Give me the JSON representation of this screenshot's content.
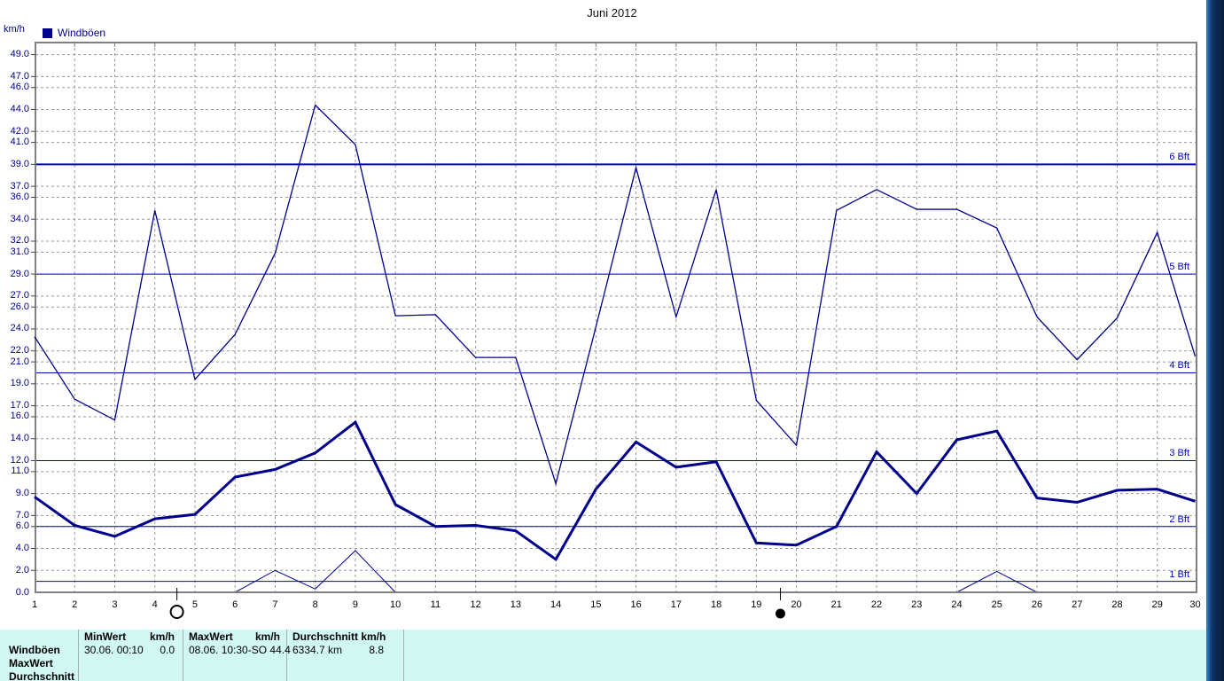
{
  "title": "Juni 2012",
  "y_axis": {
    "unit_label": "km/h",
    "tick_values": [
      49,
      47,
      46,
      44,
      42,
      41,
      39,
      37,
      36,
      34,
      32,
      31,
      29,
      27,
      26,
      24,
      22,
      21,
      19,
      17,
      16,
      14,
      12,
      11,
      9,
      7,
      6,
      4,
      2,
      0
    ],
    "range": [
      0,
      50
    ]
  },
  "x_axis": {
    "days": [
      1,
      2,
      3,
      4,
      5,
      6,
      7,
      8,
      9,
      10,
      11,
      12,
      13,
      14,
      15,
      16,
      17,
      18,
      19,
      20,
      21,
      22,
      23,
      24,
      25,
      26,
      27,
      28,
      29,
      30
    ]
  },
  "legend": {
    "label": "Windböen"
  },
  "bft_lines": [
    {
      "label": "1 Bft",
      "kmh": 1
    },
    {
      "label": "2 Bft",
      "kmh": 6
    },
    {
      "label": "3 Bft",
      "kmh": 12
    },
    {
      "label": "4 Bft",
      "kmh": 20
    },
    {
      "label": "5 Bft",
      "kmh": 29
    },
    {
      "label": "6 Bft",
      "kmh": 39
    }
  ],
  "moon_markers": [
    {
      "type": "full-moon",
      "day": 4.55
    },
    {
      "type": "new-moon",
      "day": 19.6
    }
  ],
  "colors": {
    "series": "#00008b",
    "legend_swatch": "#000090",
    "bft_line": "#0000cd",
    "grid": "#9a9a9a",
    "axis_border": "#808080",
    "table_bg": "#d2f8f6",
    "axis_text_blue": "#00008b",
    "bft_text": "#0000cc"
  },
  "chart_data": {
    "type": "line",
    "title": "Juni 2012",
    "xlabel": "",
    "ylabel": "km/h",
    "ylim": [
      0,
      50
    ],
    "grid": "dashed",
    "legend_position": "top-left",
    "x": [
      1,
      2,
      3,
      4,
      5,
      6,
      7,
      8,
      9,
      10,
      11,
      12,
      13,
      14,
      15,
      16,
      17,
      18,
      19,
      20,
      21,
      22,
      23,
      24,
      25,
      26,
      27,
      28,
      29,
      30
    ],
    "series": [
      {
        "name": "Windböen MaxWert",
        "style": "thin",
        "values": [
          23.3,
          17.6,
          15.7,
          34.8,
          19.4,
          23.5,
          30.9,
          44.4,
          40.8,
          25.2,
          25.3,
          21.4,
          21.4,
          9.9,
          24.2,
          38.7,
          25.1,
          36.7,
          17.5,
          13.4,
          34.8,
          36.7,
          34.9,
          34.9,
          33.2,
          25.1,
          21.2,
          25.0,
          32.8,
          21.5
        ]
      },
      {
        "name": "Windböen Durchschnitt",
        "style": "thick",
        "values": [
          8.7,
          6.1,
          5.1,
          6.7,
          7.1,
          10.5,
          11.2,
          12.7,
          15.5,
          8.0,
          6.0,
          6.1,
          5.6,
          3.0,
          9.4,
          13.7,
          11.4,
          11.9,
          4.5,
          4.3,
          6.0,
          12.8,
          9.0,
          13.9,
          14.7,
          8.6,
          8.2,
          9.3,
          9.4,
          8.3
        ]
      },
      {
        "name": "Windböen MinWert",
        "style": "thin",
        "values": [
          0,
          0,
          0,
          0,
          0,
          0,
          2.0,
          0.3,
          3.8,
          0,
          0,
          0,
          0,
          0,
          0,
          0,
          0,
          0,
          0,
          0,
          0,
          0,
          0,
          0,
          1.9,
          0,
          0,
          0,
          0,
          0
        ]
      }
    ]
  },
  "table": {
    "row_labels": [
      "Windböen",
      "MaxWert",
      "Durchschnitt"
    ],
    "columns": [
      {
        "header_left": "MinWert",
        "header_right": "km/h",
        "value_left": "30.06.  00:10",
        "value_right": "0.0"
      },
      {
        "header_left": "MaxWert",
        "header_right": "km/h",
        "value_left": "08.06.  10:30-SO 44.4",
        "value_right": ""
      },
      {
        "header_left": "Durchschnitt km/h",
        "header_right": "",
        "value_left": "6334.7 km",
        "value_right": "8.8"
      }
    ]
  }
}
